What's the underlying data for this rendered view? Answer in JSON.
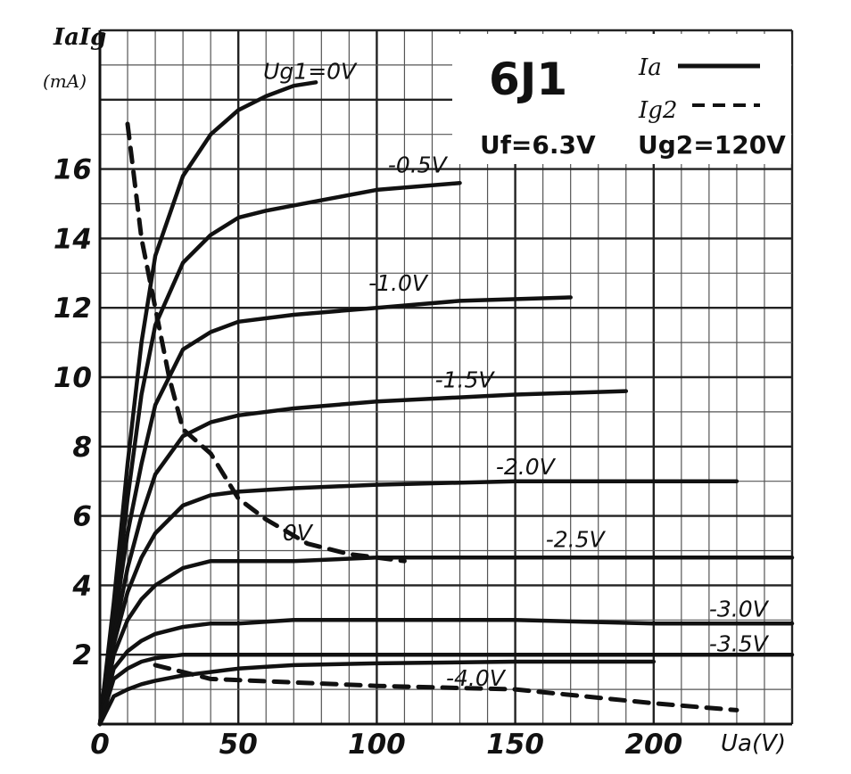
{
  "chart_data": {
    "type": "line",
    "title": "6J1",
    "params": [
      "Uf=6.3V",
      "Ug2=120V"
    ],
    "ylabel": "IaIg",
    "ylabel_unit": "(mA)",
    "xlabel": "Ua(V)",
    "xlim": [
      0,
      250
    ],
    "ylim": [
      0,
      20
    ],
    "x_ticks": [
      0,
      50,
      100,
      150,
      200
    ],
    "y_ticks": [
      2,
      4,
      6,
      8,
      10,
      12,
      14,
      16
    ],
    "x_tick_labels": [
      "0",
      "50",
      "100",
      "150",
      "200"
    ],
    "y_tick_labels": [
      "2",
      "4",
      "6",
      "8",
      "10",
      "12",
      "14",
      "16"
    ],
    "grid": true,
    "legend": {
      "placement": "top-right",
      "entries": [
        {
          "label": "Ia",
          "style": "solid"
        },
        {
          "label": "Ig2",
          "style": "dashed"
        }
      ]
    },
    "series": [
      {
        "label": "Ug1=0V",
        "kind": "Ia",
        "style": "solid",
        "x": [
          0,
          5,
          10,
          15,
          20,
          30,
          40,
          50,
          60,
          70,
          78
        ],
        "y": [
          0,
          3.5,
          7.5,
          11,
          13.5,
          15.8,
          17,
          17.7,
          18.1,
          18.4,
          18.5
        ]
      },
      {
        "label": "-0.5V",
        "kind": "Ia",
        "style": "solid",
        "x": [
          0,
          5,
          10,
          15,
          20,
          30,
          40,
          50,
          60,
          80,
          100,
          130
        ],
        "y": [
          0,
          3,
          6.5,
          9.5,
          11.5,
          13.3,
          14.1,
          14.6,
          14.8,
          15.1,
          15.4,
          15.6
        ]
      },
      {
        "label": "-1.0V",
        "kind": "Ia",
        "style": "solid",
        "x": [
          0,
          5,
          10,
          15,
          20,
          30,
          40,
          50,
          70,
          100,
          130,
          170
        ],
        "y": [
          0,
          2.8,
          5.5,
          7.5,
          9.2,
          10.8,
          11.3,
          11.6,
          11.8,
          12,
          12.2,
          12.3
        ]
      },
      {
        "label": "-1.5V",
        "kind": "Ia",
        "style": "solid",
        "x": [
          0,
          5,
          10,
          15,
          20,
          30,
          40,
          50,
          70,
          100,
          150,
          190
        ],
        "y": [
          0,
          2.5,
          4.5,
          6,
          7.2,
          8.3,
          8.7,
          8.9,
          9.1,
          9.3,
          9.5,
          9.6
        ]
      },
      {
        "label": "-2.0V",
        "kind": "Ia",
        "style": "solid",
        "x": [
          0,
          5,
          10,
          15,
          20,
          30,
          40,
          50,
          70,
          100,
          150,
          200,
          230
        ],
        "y": [
          0,
          2.3,
          3.8,
          4.8,
          5.5,
          6.3,
          6.6,
          6.7,
          6.8,
          6.9,
          7,
          7,
          7
        ]
      },
      {
        "label": "-2.5V",
        "kind": "Ia",
        "style": "solid",
        "x": [
          0,
          5,
          10,
          15,
          20,
          30,
          40,
          50,
          70,
          100,
          150,
          200,
          250
        ],
        "y": [
          0,
          2,
          3,
          3.6,
          4,
          4.5,
          4.7,
          4.7,
          4.7,
          4.8,
          4.8,
          4.8,
          4.8
        ]
      },
      {
        "label": "-3.0V",
        "kind": "Ia",
        "style": "solid",
        "x": [
          0,
          5,
          10,
          15,
          20,
          30,
          40,
          50,
          70,
          100,
          150,
          200,
          250
        ],
        "y": [
          0,
          1.6,
          2.1,
          2.4,
          2.6,
          2.8,
          2.9,
          2.9,
          3,
          3,
          3,
          2.9,
          2.9
        ]
      },
      {
        "label": "-3.5V",
        "kind": "Ia",
        "style": "solid",
        "x": [
          0,
          5,
          10,
          15,
          20,
          30,
          40,
          50,
          70,
          100,
          150,
          200,
          250
        ],
        "y": [
          0,
          1.3,
          1.6,
          1.8,
          1.9,
          2,
          2,
          2,
          2,
          2,
          2,
          2,
          2
        ]
      },
      {
        "label": "-4.0V",
        "kind": "Ia",
        "style": "solid",
        "x": [
          0,
          5,
          10,
          15,
          20,
          30,
          40,
          50,
          60,
          70,
          100,
          150,
          200
        ],
        "y": [
          0,
          0.8,
          1,
          1.15,
          1.25,
          1.4,
          1.5,
          1.6,
          1.65,
          1.7,
          1.75,
          1.8,
          1.8
        ]
      },
      {
        "label": "0V",
        "kind": "Ig2",
        "style": "dashed",
        "x": [
          10,
          12,
          15,
          20,
          25,
          30,
          40,
          50,
          60,
          75,
          90,
          110
        ],
        "y": [
          17.3,
          16,
          14,
          12,
          10,
          8.5,
          7.8,
          6.5,
          5.9,
          5.2,
          4.9,
          4.7
        ]
      },
      {
        "label": "-4.0V",
        "kind": "Ig2",
        "style": "dashed",
        "x": [
          20,
          40,
          70,
          100,
          150,
          200,
          230
        ],
        "y": [
          1.7,
          1.3,
          1.2,
          1.1,
          1,
          0.6,
          0.4
        ]
      }
    ]
  }
}
